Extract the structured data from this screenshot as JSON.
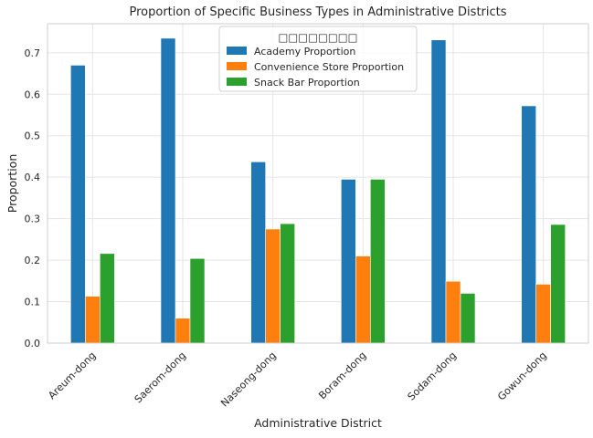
{
  "chart_data": {
    "type": "bar",
    "title": "Proportion of Specific Business Types in Administrative Districts",
    "xlabel": "Administrative District",
    "ylabel": "Proportion",
    "categories": [
      "Areum-dong",
      "Saerom-dong",
      "Naseong-dong",
      "Boram-dong",
      "Sodam-dong",
      "Gowun-dong"
    ],
    "series": [
      {
        "name": "Academy Proportion",
        "color": "#1f77b4",
        "values": [
          0.67,
          0.735,
          0.437,
          0.395,
          0.731,
          0.572
        ]
      },
      {
        "name": "Convenience Store Proportion",
        "color": "#ff7f0e",
        "values": [
          0.113,
          0.06,
          0.275,
          0.21,
          0.149,
          0.142
        ]
      },
      {
        "name": "Snack Bar Proportion",
        "color": "#2ca02c",
        "values": [
          0.216,
          0.204,
          0.288,
          0.395,
          0.12,
          0.286
        ]
      }
    ],
    "legend_title": "□□□□□□□□",
    "legend_position": "top-center",
    "ylim": [
      0,
      0.77
    ],
    "yticks": [
      0.0,
      0.1,
      0.2,
      0.3,
      0.4,
      0.5,
      0.6,
      0.7
    ],
    "grid": true
  }
}
